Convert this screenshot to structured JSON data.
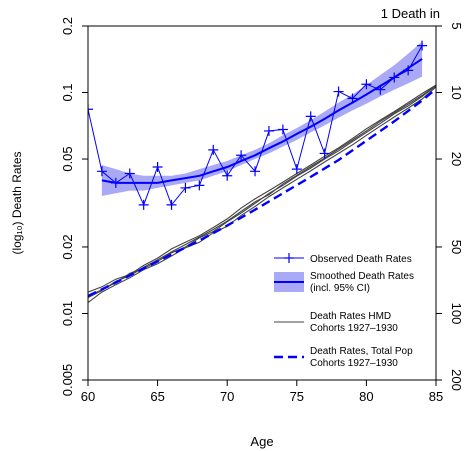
{
  "chart_data": {
    "type": "line",
    "title": "",
    "xlabel": "Age",
    "ylabel": "(log₁₀) Death Rates",
    "right_axis_title": "1 Death in",
    "xlim": [
      60,
      85
    ],
    "ylim": [
      0.005,
      0.2
    ],
    "y_scale": "log10",
    "x_ticks": [
      60,
      65,
      70,
      75,
      80,
      85
    ],
    "x_tick_labels": [
      "60",
      "65",
      "70",
      "75",
      "80",
      "85"
    ],
    "y_ticks": [
      0.005,
      0.01,
      0.02,
      0.05,
      0.1,
      0.2
    ],
    "y_tick_labels": [
      "0.005",
      "0.01",
      "0.02",
      "0.05",
      "0.1",
      "0.2"
    ],
    "right_ticks": [
      5,
      10,
      20,
      50,
      100,
      200
    ],
    "right_tick_labels": [
      "5",
      "10",
      "20",
      "50",
      "100",
      "200"
    ],
    "grid": false,
    "legend_position": "bottom-right",
    "legend": [
      {
        "label": "Observed Death Rates",
        "style": "line-plus"
      },
      {
        "label": "Smoothed Death Rates\n(incl. 95% CI)",
        "style": "band-line"
      },
      {
        "label": "Death Rates HMD\nCohorts 1927–1930",
        "style": "thin-line"
      },
      {
        "label": "Death Rates, Total Pop\nCohorts 1927–1930",
        "style": "dashed-line"
      }
    ],
    "series": [
      {
        "name": "Observed Death Rates",
        "color": "#0000ff",
        "x": [
          60,
          61,
          62,
          63,
          64,
          65,
          66,
          67,
          68,
          69,
          70,
          71,
          72,
          73,
          74,
          75,
          76,
          77,
          78,
          79,
          80,
          81,
          82,
          83,
          84
        ],
        "values": [
          0.084,
          0.044,
          0.039,
          0.043,
          0.031,
          0.046,
          0.031,
          0.037,
          0.038,
          0.055,
          0.042,
          0.052,
          0.044,
          0.067,
          0.068,
          0.045,
          0.078,
          0.053,
          0.101,
          0.094,
          0.109,
          0.103,
          0.117,
          0.126,
          0.163
        ]
      },
      {
        "name": "Smoothed Death Rates (incl. 95% CI)",
        "color": "#0000ff",
        "band_color": "#a9a9f5",
        "x": [
          61,
          62,
          63,
          64,
          65,
          66,
          67,
          68,
          69,
          70,
          71,
          72,
          73,
          74,
          75,
          76,
          77,
          78,
          79,
          80,
          81,
          82,
          83,
          84
        ],
        "values": [
          0.04,
          0.039,
          0.039,
          0.039,
          0.039,
          0.04,
          0.041,
          0.042,
          0.044,
          0.046,
          0.049,
          0.052,
          0.056,
          0.06,
          0.065,
          0.07,
          0.076,
          0.083,
          0.09,
          0.098,
          0.107,
          0.117,
          0.129,
          0.142
        ],
        "lower": [
          0.034,
          0.035,
          0.036,
          0.036,
          0.037,
          0.038,
          0.039,
          0.04,
          0.042,
          0.044,
          0.047,
          0.05,
          0.053,
          0.057,
          0.061,
          0.066,
          0.071,
          0.077,
          0.083,
          0.089,
          0.096,
          0.103,
          0.11,
          0.118
        ],
        "upper": [
          0.047,
          0.045,
          0.043,
          0.042,
          0.042,
          0.042,
          0.043,
          0.045,
          0.047,
          0.049,
          0.052,
          0.055,
          0.059,
          0.064,
          0.069,
          0.075,
          0.082,
          0.09,
          0.098,
          0.108,
          0.12,
          0.133,
          0.15,
          0.17
        ]
      },
      {
        "name": "Death Rates HMD Cohorts 1927–1930",
        "color": "#444444",
        "x": [
          60,
          61,
          62,
          63,
          64,
          65,
          66,
          67,
          68,
          69,
          70,
          71,
          72,
          73,
          74,
          75,
          76,
          77,
          78,
          79,
          80,
          81,
          82,
          83,
          84,
          85
        ],
        "lines": [
          [
            0.0125,
            0.0132,
            0.0143,
            0.015,
            0.0165,
            0.0178,
            0.0196,
            0.021,
            0.0225,
            0.0245,
            0.0268,
            0.03,
            0.033,
            0.036,
            0.0393,
            0.043,
            0.047,
            0.0515,
            0.0562,
            0.062,
            0.0685,
            0.075,
            0.082,
            0.09,
            0.099,
            0.108
          ],
          [
            0.012,
            0.0128,
            0.0138,
            0.0152,
            0.016,
            0.0172,
            0.0188,
            0.02,
            0.022,
            0.0235,
            0.026,
            0.0285,
            0.0315,
            0.035,
            0.038,
            0.0418,
            0.0455,
            0.05,
            0.0545,
            0.06,
            0.066,
            0.0725,
            0.08,
            0.087,
            0.096,
            0.107
          ],
          [
            0.0112,
            0.0125,
            0.0135,
            0.0145,
            0.0158,
            0.0168,
            0.0182,
            0.0198,
            0.021,
            0.0232,
            0.0248,
            0.0278,
            0.0305,
            0.0338,
            0.037,
            0.0405,
            0.0442,
            0.0485,
            0.053,
            0.058,
            0.064,
            0.0705,
            0.0775,
            0.085,
            0.0935,
            0.106
          ],
          [
            0.0118,
            0.0127,
            0.014,
            0.0148,
            0.0162,
            0.0175,
            0.019,
            0.0205,
            0.0222,
            0.024,
            0.0262,
            0.029,
            0.032,
            0.0345,
            0.0386,
            0.0422,
            0.0462,
            0.0505,
            0.0555,
            0.061,
            0.067,
            0.074,
            0.081,
            0.0885,
            0.097,
            0.1075
          ]
        ]
      },
      {
        "name": "Death Rates, Total Pop Cohorts 1927–1930",
        "color": "#0000ff",
        "x": [
          60,
          62,
          64,
          66,
          68,
          70,
          72,
          74,
          76,
          78,
          80,
          82,
          84,
          85
        ],
        "values": [
          0.012,
          0.0138,
          0.016,
          0.0185,
          0.0214,
          0.025,
          0.0295,
          0.035,
          0.0415,
          0.0495,
          0.0605,
          0.074,
          0.092,
          0.104
        ]
      }
    ]
  }
}
